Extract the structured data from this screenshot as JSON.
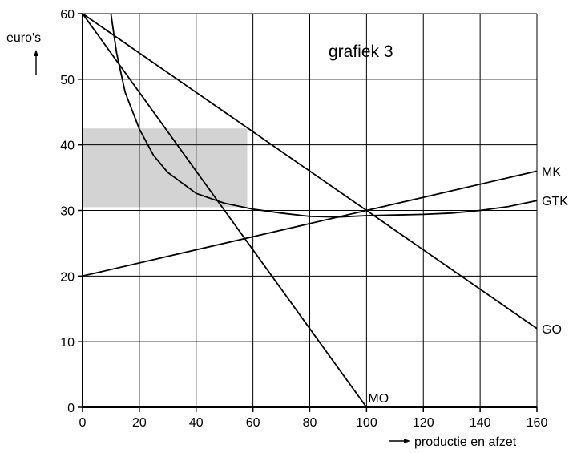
{
  "chart_data": {
    "type": "line",
    "title": "grafiek 3",
    "ylabel": "euro's",
    "xlabel": "productie en afzet",
    "xlim": [
      0,
      160
    ],
    "ylim": [
      0,
      60
    ],
    "x_ticks": [
      0,
      20,
      40,
      60,
      80,
      100,
      120,
      140,
      160
    ],
    "y_ticks": [
      0,
      10,
      20,
      30,
      40,
      50,
      60
    ],
    "grid": true,
    "shaded_region": {
      "x": [
        0,
        58
      ],
      "y": [
        30.5,
        42.5
      ],
      "color": "#d3d3d3"
    },
    "series": [
      {
        "name": "MK",
        "x": [
          0,
          160
        ],
        "y": [
          20,
          36
        ]
      },
      {
        "name": "GTK",
        "x": [
          10,
          12,
          15,
          20,
          25,
          30,
          40,
          50,
          60,
          70,
          80,
          90,
          100,
          110,
          120,
          130,
          140,
          150,
          160
        ],
        "y": [
          60,
          54,
          48,
          42.4,
          38.4,
          35.8,
          32.6,
          31.1,
          30.2,
          29.6,
          29.1,
          29.0,
          29.2,
          29.3,
          29.4,
          29.6,
          30.0,
          30.6,
          31.5
        ]
      },
      {
        "name": "GO",
        "x": [
          0,
          160
        ],
        "y": [
          60,
          12
        ]
      },
      {
        "name": "MO",
        "x": [
          0,
          100
        ],
        "y": [
          60,
          0
        ]
      }
    ]
  }
}
